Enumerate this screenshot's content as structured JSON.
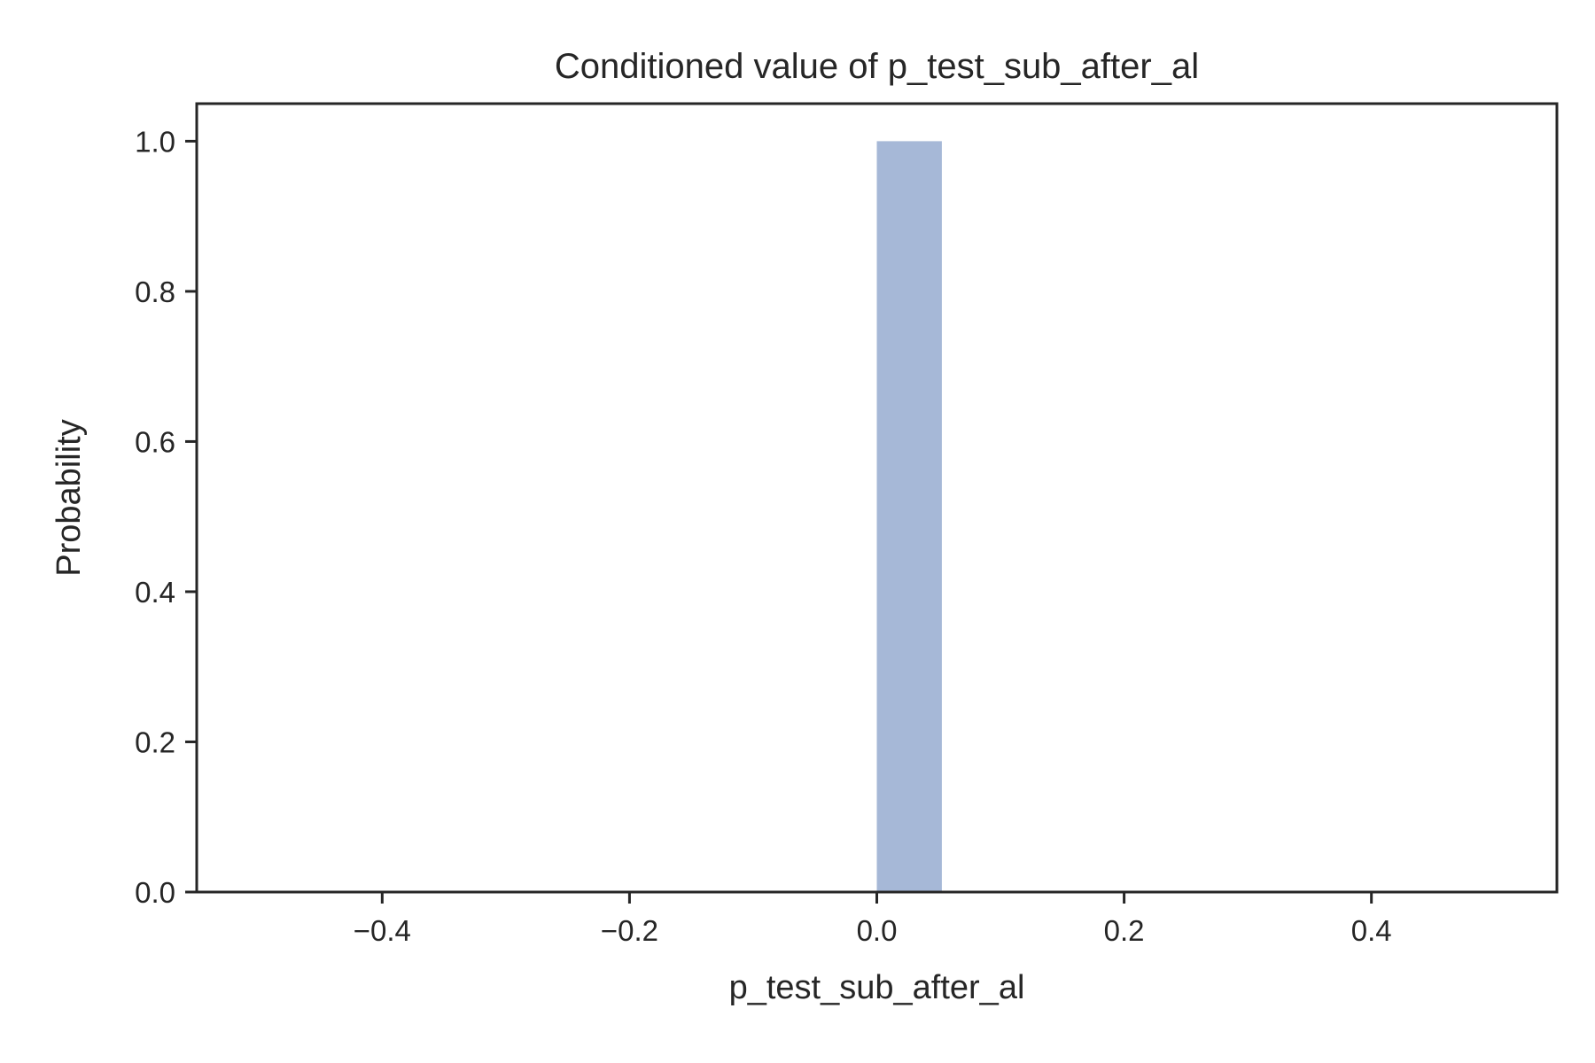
{
  "chart_data": {
    "type": "bar",
    "title": "Conditioned value of p_test_sub_after_al",
    "xlabel": "p_test_sub_after_al",
    "ylabel": "Probability",
    "xlim": [
      -0.55,
      0.55
    ],
    "ylim": [
      0.0,
      1.05
    ],
    "xticks": [
      -0.4,
      -0.2,
      0.0,
      0.2,
      0.4
    ],
    "xtick_labels": [
      "−0.4",
      "−0.2",
      "0.0",
      "0.2",
      "0.4"
    ],
    "yticks": [
      0.0,
      0.2,
      0.4,
      0.6,
      0.8,
      1.0
    ],
    "ytick_labels": [
      "0.0",
      "0.2",
      "0.4",
      "0.6",
      "0.8",
      "1.0"
    ],
    "bars": [
      {
        "x_start": 0.0,
        "x_end": 0.0526,
        "value": 1.0
      }
    ],
    "bar_color": "#a6b8d7",
    "axis_color": "#262626",
    "grid": false,
    "legend": "none"
  }
}
